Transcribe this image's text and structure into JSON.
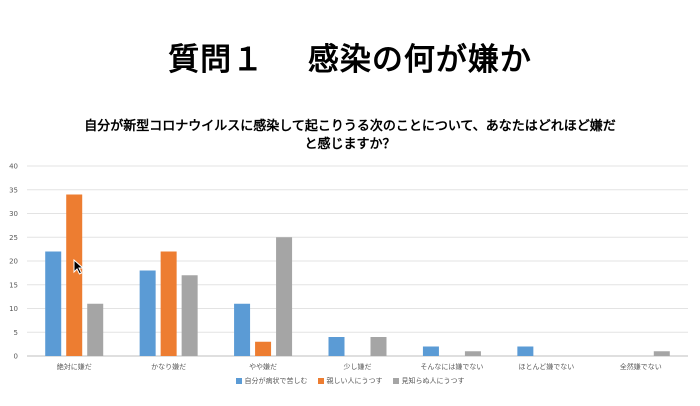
{
  "slide": {
    "title": "質問１　 感染の何が嫌か"
  },
  "chart_data": {
    "type": "bar",
    "title_line1": "自分が新型コロナウイルスに感染して起こりうる次のことについて、あなたはどれほど嫌だ",
    "title_line2": "と感じますか？",
    "categories": [
      "絶対に嫌だ",
      "かなり嫌だ",
      "やや嫌だ",
      "少し嫌だ",
      "そんなには嫌でない",
      "ほとんど嫌でない",
      "全然嫌でない"
    ],
    "series": [
      {
        "name": "自分が病状で苦しむ",
        "color": "#5B9BD5",
        "values": [
          22,
          18,
          11,
          4,
          2,
          2,
          0
        ]
      },
      {
        "name": "親しい人にうつす",
        "color": "#ED7D31",
        "values": [
          34,
          22,
          3,
          0,
          0,
          0,
          0
        ]
      },
      {
        "name": "見知らぬ人にうつす",
        "color": "#A5A5A5",
        "values": [
          11,
          17,
          25,
          4,
          1,
          0,
          1
        ]
      }
    ],
    "ylim": [
      0,
      40
    ],
    "yticks": [
      0,
      5,
      10,
      15,
      20,
      25,
      30,
      35,
      40
    ],
    "grid": true,
    "legend_position": "bottom"
  }
}
